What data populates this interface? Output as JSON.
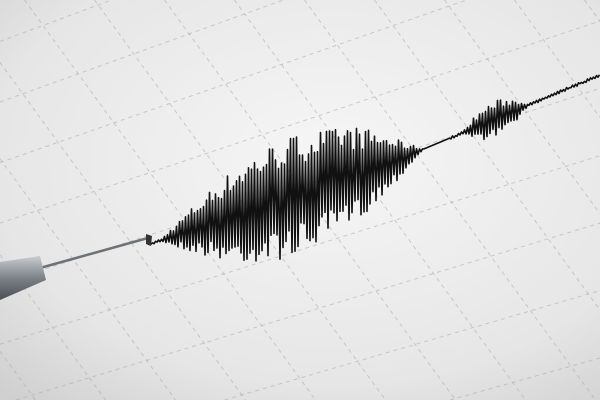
{
  "scene": {
    "subject": "seismograph-trace",
    "colors": {
      "paper_light": "#f4f4f4",
      "paper_dark": "#d2d2d2",
      "grid": "#a8a8a8",
      "trace": "#111111",
      "stylus": "#8a8f94"
    }
  }
}
